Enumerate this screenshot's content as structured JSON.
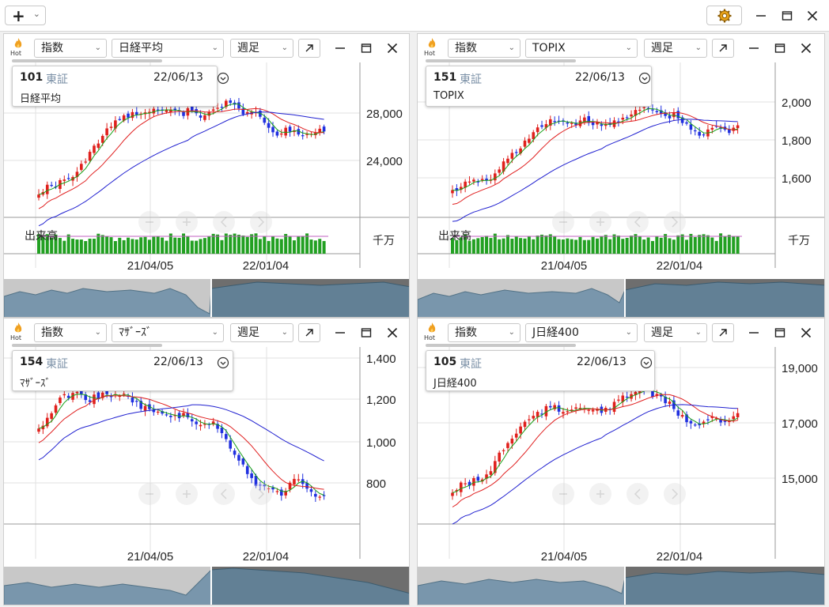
{
  "toolbar": {
    "add_label": "+",
    "add_dropdown": "⌄",
    "icons": {
      "settings": "gear-icon",
      "minimize": "minimize-icon",
      "maximize": "maximize-icon",
      "close": "close-icon"
    }
  },
  "panels": [
    {
      "type_select": "指数",
      "symbol_select": "日経平均",
      "period_select": "週足",
      "info": {
        "code": "101",
        "market": "東証",
        "date": "22/06/13",
        "name": "日経平均"
      },
      "axis": {
        "y_ticks": [
          "28,000",
          "24,000"
        ],
        "volume_unit": "千万",
        "volume_label": "出来高"
      },
      "x_ticks": [
        "21/04/05",
        "22/01/04"
      ]
    },
    {
      "type_select": "指数",
      "symbol_select": "TOPIX",
      "period_select": "週足",
      "info": {
        "code": "151",
        "market": "東証",
        "date": "22/06/13",
        "name": "TOPIX"
      },
      "axis": {
        "y_ticks": [
          "2,000",
          "1,800",
          "1,600"
        ],
        "volume_unit": "千万",
        "volume_label": "出来高"
      },
      "x_ticks": [
        "21/04/05",
        "22/01/04"
      ]
    },
    {
      "type_select": "指数",
      "symbol_select": "ﾏｻﾞｰｽﾞ",
      "period_select": "週足",
      "info": {
        "code": "154",
        "market": "東証",
        "date": "22/06/13",
        "name": "ﾏｻﾞｰｽﾞ"
      },
      "axis": {
        "y_ticks": [
          "1,400",
          "1,200",
          "1,000",
          "800"
        ],
        "volume_unit": "",
        "volume_label": ""
      },
      "x_ticks": [
        "21/04/05",
        "22/01/04"
      ]
    },
    {
      "type_select": "指数",
      "symbol_select": "J日経400",
      "period_select": "週足",
      "info": {
        "code": "105",
        "market": "東証",
        "date": "22/06/13",
        "name": "J日経400"
      },
      "axis": {
        "y_ticks": [
          "19,000",
          "17,000",
          "15,000"
        ],
        "volume_unit": "",
        "volume_label": ""
      },
      "x_ticks": [
        "21/04/05",
        "22/01/04"
      ]
    }
  ]
}
